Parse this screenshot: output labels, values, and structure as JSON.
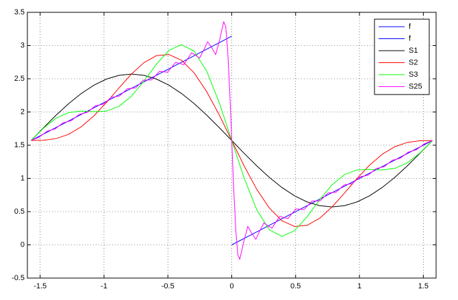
{
  "chart_data": {
    "type": "line",
    "grid": true,
    "legend": "northeast",
    "xlim": [
      -1.6,
      1.6
    ],
    "ylim": [
      -0.5,
      3.5
    ],
    "xticks": [
      -1.5,
      -1,
      -0.5,
      0,
      0.5,
      1,
      1.5
    ],
    "yticks": [
      -0.5,
      0,
      0.5,
      1,
      1.5,
      2,
      2.5,
      3,
      3.5
    ],
    "series": [
      {
        "name": "f",
        "color": "#0000ff",
        "x": [
          -1.5708,
          0
        ],
        "values": [
          1.5708,
          3.1416
        ]
      },
      {
        "name": "f",
        "color": "#0000ff",
        "x": [
          0,
          1.5708
        ],
        "values": [
          0,
          1.5708
        ]
      },
      {
        "name": "S1",
        "color": "#000000",
        "x": [
          -1.5708,
          -1.4726,
          -1.3744,
          -1.2763,
          -1.1781,
          -1.0799,
          -0.9817,
          -0.8836,
          -0.7854,
          -0.6872,
          -0.589,
          -0.4909,
          -0.3927,
          -0.2945,
          -0.1963,
          -0.0982,
          0,
          0.0982,
          0.1963,
          0.2945,
          0.3927,
          0.4909,
          0.589,
          0.6872,
          0.7854,
          0.8836,
          0.9817,
          1.0799,
          1.1781,
          1.2763,
          1.3744,
          1.4726,
          1.5708
        ],
        "values": [
          1.5708,
          1.7659,
          1.9535,
          2.1264,
          2.2779,
          2.4023,
          2.4947,
          2.5516,
          2.5708,
          2.5516,
          2.4947,
          2.4023,
          2.2779,
          2.1264,
          1.9535,
          1.7659,
          1.5708,
          1.3757,
          1.1881,
          1.0152,
          0.8637,
          0.7393,
          0.6469,
          0.59,
          0.5708,
          0.59,
          0.6469,
          0.7393,
          0.8637,
          1.0152,
          1.1881,
          1.3757,
          1.5708
        ]
      },
      {
        "name": "S2",
        "color": "#ff0000",
        "x": [
          -1.5708,
          -1.4726,
          -1.3744,
          -1.2763,
          -1.1781,
          -1.0799,
          -0.9817,
          -0.8836,
          -0.7854,
          -0.6872,
          -0.589,
          -0.4909,
          -0.3927,
          -0.2945,
          -0.1963,
          -0.0982,
          0,
          0.0982,
          0.1963,
          0.2945,
          0.3927,
          0.4909,
          0.589,
          0.6872,
          0.7854,
          0.8836,
          0.9817,
          1.0799,
          1.1781,
          1.2763,
          1.3744,
          1.4726,
          1.5708
        ],
        "values": [
          1.5708,
          1.5746,
          1.5999,
          1.6645,
          1.7779,
          1.9404,
          2.1411,
          2.3603,
          2.5708,
          2.7429,
          2.8483,
          2.8642,
          2.7779,
          2.5883,
          2.3071,
          1.9572,
          1.5708,
          1.1844,
          0.8345,
          0.5533,
          0.3637,
          0.2774,
          0.2933,
          0.3987,
          0.5708,
          0.7813,
          1.0005,
          1.2012,
          1.3637,
          1.4771,
          1.5417,
          1.567,
          1.5708
        ]
      },
      {
        "name": "S3",
        "color": "#00ff00",
        "x": [
          -1.5708,
          -1.4726,
          -1.3744,
          -1.2763,
          -1.1781,
          -1.0799,
          -0.9817,
          -0.8836,
          -0.7854,
          -0.6872,
          -0.589,
          -0.4909,
          -0.3927,
          -0.2945,
          -0.1963,
          -0.0982,
          0,
          0.0982,
          0.1963,
          0.2945,
          0.3927,
          0.4909,
          0.589,
          0.6872,
          0.7854,
          0.8836,
          0.9817,
          1.0799,
          1.1781,
          1.2763,
          1.3744,
          1.4726,
          1.5708
        ],
        "values": [
          1.5708,
          1.7598,
          1.9079,
          1.9914,
          2.0136,
          2.0054,
          2.0135,
          2.0831,
          2.2375,
          2.4657,
          2.7207,
          2.9292,
          3.0136,
          2.915,
          2.6151,
          2.1424,
          1.5708,
          0.9992,
          0.5265,
          0.2264,
          0.128,
          0.2124,
          0.4209,
          0.6759,
          0.9041,
          1.0585,
          1.1281,
          1.1362,
          1.128,
          1.1502,
          1.2337,
          1.3818,
          1.5708
        ]
      },
      {
        "name": "S25",
        "color": "#ff00ff",
        "x": [
          -1.5708,
          -1.508,
          -1.4451,
          -1.3823,
          -1.3195,
          -1.2566,
          -1.1938,
          -1.131,
          -1.0681,
          -1.0053,
          -0.9425,
          -0.8796,
          -0.8168,
          -0.754,
          -0.6912,
          -0.6283,
          -0.5655,
          -0.5027,
          -0.4712,
          -0.4398,
          -0.4084,
          -0.377,
          -0.3456,
          -0.3142,
          -0.2827,
          -0.2513,
          -0.2199,
          -0.1885,
          -0.1571,
          -0.1257,
          -0.0942,
          -0.0628,
          -0.0471,
          -0.0314,
          -0.0157,
          0,
          0.0157,
          0.0314,
          0.0471,
          0.0628,
          0.0942,
          0.1257,
          0.1571,
          0.1885,
          0.2199,
          0.2513,
          0.2827,
          0.3142,
          0.3456,
          0.377,
          0.4084,
          0.4398,
          0.4712,
          0.5027,
          0.5655,
          0.6283,
          0.6912,
          0.754,
          0.8168,
          0.8796,
          0.9425,
          1.0053,
          1.0681,
          1.131,
          1.1938,
          1.2566,
          1.3195,
          1.3823,
          1.4451,
          1.508,
          1.5708
        ],
        "values": [
          1.5708,
          1.621,
          1.711,
          1.746,
          1.838,
          1.869,
          1.965,
          1.993,
          2.093,
          2.117,
          2.221,
          2.24,
          2.35,
          2.361,
          2.48,
          2.482,
          2.612,
          2.599,
          2.671,
          2.747,
          2.732,
          2.712,
          2.8,
          2.891,
          2.854,
          2.812,
          2.93,
          3.058,
          2.969,
          2.863,
          3.093,
          3.36,
          3.284,
          2.911,
          2.315,
          1.5708,
          0.827,
          0.231,
          -0.142,
          -0.218,
          0.049,
          0.279,
          0.173,
          0.084,
          0.212,
          0.33,
          0.288,
          0.251,
          0.342,
          0.43,
          0.41,
          0.395,
          0.471,
          0.543,
          0.53,
          0.66,
          0.662,
          0.781,
          0.792,
          0.902,
          0.921,
          1.025,
          1.049,
          1.149,
          1.177,
          1.273,
          1.304,
          1.396,
          1.431,
          1.521,
          1.5708
        ]
      }
    ]
  }
}
